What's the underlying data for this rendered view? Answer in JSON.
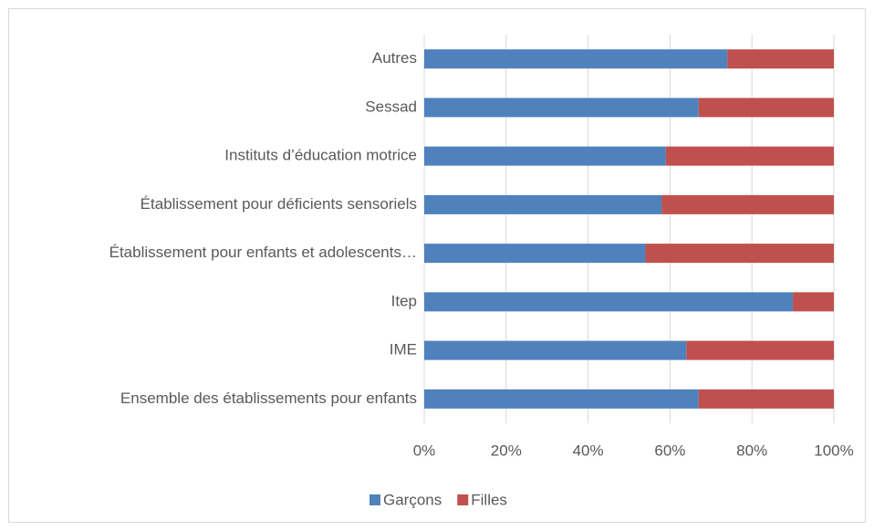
{
  "chart_data": {
    "type": "stacked_bar_horizontal",
    "categories": [
      "Autres",
      "Sessad",
      "Instituts d’éducation motrice",
      "Établissement pour déficients sensoriels",
      "Établissement pour enfants et adolescents…",
      "Itep",
      "IME",
      "Ensemble des établissements pour enfants"
    ],
    "series": [
      {
        "name": "Garçons",
        "color": "#4f81bd",
        "values": [
          74,
          67,
          59,
          58,
          54,
          90,
          64,
          67
        ]
      },
      {
        "name": "Filles",
        "color": "#c0504d",
        "values": [
          26,
          33,
          41,
          42,
          46,
          10,
          36,
          33
        ]
      }
    ],
    "xlim": [
      0,
      100
    ],
    "xticks": [
      {
        "value": 0,
        "label": "0%"
      },
      {
        "value": 20,
        "label": "20%"
      },
      {
        "value": 40,
        "label": "40%"
      },
      {
        "value": 60,
        "label": "60%"
      },
      {
        "value": 80,
        "label": "80%"
      },
      {
        "value": 100,
        "label": "100%"
      }
    ],
    "grid": true,
    "legend": "bottom"
  }
}
